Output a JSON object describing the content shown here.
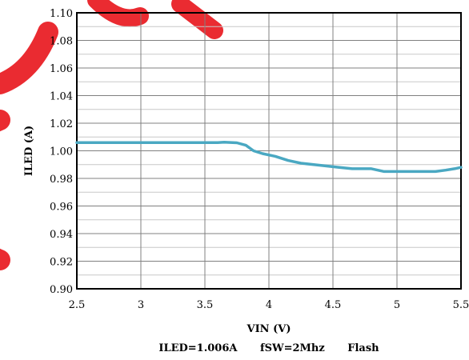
{
  "chart_data": {
    "type": "line",
    "xlabel": "VIN (V)",
    "ylabel": "ILED (A)",
    "xlim": [
      2.5,
      5.5
    ],
    "ylim": [
      0.9,
      1.1
    ],
    "x_ticks": [
      "2.5",
      "3",
      "3.5",
      "4",
      "4.5",
      "5",
      "5.5"
    ],
    "y_ticks": [
      "0.90",
      "0.92",
      "0.94",
      "0.96",
      "0.98",
      "1.00",
      "1.02",
      "1.04",
      "1.06",
      "1.08",
      "1.10"
    ],
    "grid": true,
    "series": [
      {
        "color": "#4aa8c2",
        "x": [
          2.5,
          2.8,
          3.2,
          3.6,
          3.65,
          3.75,
          3.82,
          3.88,
          3.95,
          4.05,
          4.15,
          4.25,
          4.35,
          4.45,
          4.55,
          4.65,
          4.75,
          4.8,
          4.85,
          4.9,
          5.0,
          5.1,
          5.2,
          5.3,
          5.38,
          5.45,
          5.5
        ],
        "y": [
          1.006,
          1.006,
          1.006,
          1.006,
          1.0062,
          1.0058,
          1.004,
          1.0,
          0.998,
          0.996,
          0.993,
          0.991,
          0.99,
          0.989,
          0.988,
          0.987,
          0.987,
          0.987,
          0.986,
          0.985,
          0.985,
          0.985,
          0.985,
          0.985,
          0.986,
          0.987,
          0.988
        ]
      }
    ]
  },
  "caption": {
    "iled": "ILED=1.006A",
    "fsw": "fSW=2Mhz",
    "mode": "Flash"
  },
  "watermark": {
    "color": "#e8141b"
  }
}
